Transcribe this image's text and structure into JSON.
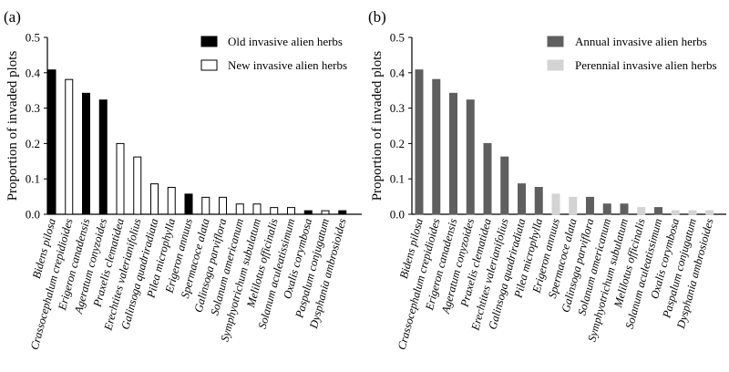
{
  "chart_data": [
    {
      "type": "bar",
      "panel_label": "(a)",
      "title": "",
      "ylabel": "Proportion of invaded plots",
      "xlabel": "",
      "ylim": [
        0,
        0.5
      ],
      "yticks": [
        "0.0",
        "0.1",
        "0.2",
        "0.3",
        "0.4",
        "0.5"
      ],
      "grid": false,
      "legend_position": "top-right",
      "legend": [
        {
          "key": "old",
          "label": "Old invasive alien herbs",
          "fill": "#000000",
          "stroke": "#000000"
        },
        {
          "key": "new",
          "label": "New invasive alien herbs",
          "fill": "#ffffff",
          "stroke": "#000000"
        }
      ],
      "categories": [
        "Bidens pilosa",
        "Crassocephalum crepidioides",
        "Erigeron canadensis",
        "Ageratum conyzoides",
        "Praxelis clematidea",
        "Erechtites valerianifolius",
        "Galinsoga quadriradiata",
        "Pilea microphylla",
        "Erigeron annuus",
        "Spermacoce alata",
        "Galinsoga parviflora",
        "Solanum americanum",
        "Symphyotrichum subulatum",
        "Melilotus officinalis",
        "Solanum aculeatissimum",
        "Oxalis corymbosa",
        "Paspalum conjugatum",
        "Dysphania ambrosioides"
      ],
      "values": [
        0.408,
        0.381,
        0.342,
        0.323,
        0.2,
        0.162,
        0.086,
        0.076,
        0.057,
        0.048,
        0.048,
        0.029,
        0.029,
        0.019,
        0.019,
        0.01,
        0.01,
        0.01
      ],
      "groups": [
        "old",
        "new",
        "old",
        "old",
        "new",
        "new",
        "new",
        "new",
        "old",
        "new",
        "new",
        "new",
        "new",
        "new",
        "new",
        "old",
        "new",
        "old"
      ]
    },
    {
      "type": "bar",
      "panel_label": "(b)",
      "title": "",
      "ylabel": "Proportion of invaded plots",
      "xlabel": "",
      "ylim": [
        0,
        0.5
      ],
      "yticks": [
        "0.0",
        "0.1",
        "0.2",
        "0.3",
        "0.4",
        "0.5"
      ],
      "grid": false,
      "legend_position": "top-right",
      "legend": [
        {
          "key": "annual",
          "label": "Annual invasive alien herbs",
          "fill": "#5f5f5f",
          "stroke": "#5f5f5f"
        },
        {
          "key": "perennial",
          "label": "Perennial invasive alien herbs",
          "fill": "#d3d3d3",
          "stroke": "#d3d3d3"
        }
      ],
      "categories": [
        "Bidens pilosa",
        "Crassocephalum crepidioides",
        "Erigeron canadensis",
        "Ageratum conyzoides",
        "Praxelis clematidea",
        "Erechtites valerianifolius",
        "Galinsoga quadriradiata",
        "Pilea microphylla",
        "Erigeron annuus",
        "Spermacoce alata",
        "Galinsoga parviflora",
        "Solanum americanum",
        "Symphyotrichum subulatum",
        "Melilotus officinalis",
        "Solanum aculeatissimum",
        "Oxalis corymbosa",
        "Paspalum conjugatum",
        "Dysphania ambrosioides"
      ],
      "values": [
        0.408,
        0.381,
        0.342,
        0.323,
        0.2,
        0.162,
        0.086,
        0.076,
        0.057,
        0.048,
        0.048,
        0.029,
        0.029,
        0.019,
        0.019,
        0.01,
        0.01,
        0.01
      ],
      "groups": [
        "annual",
        "annual",
        "annual",
        "annual",
        "annual",
        "annual",
        "annual",
        "annual",
        "perennial",
        "perennial",
        "annual",
        "annual",
        "annual",
        "perennial",
        "annual",
        "perennial",
        "perennial",
        "perennial"
      ]
    }
  ]
}
